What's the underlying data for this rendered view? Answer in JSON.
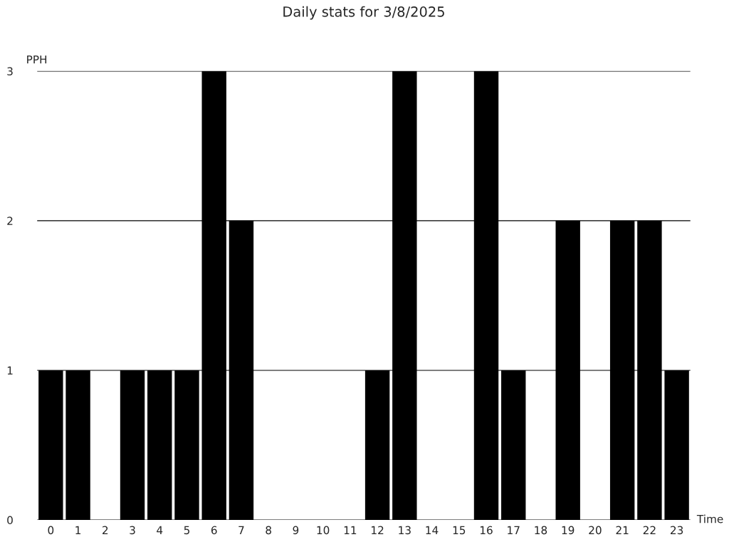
{
  "chart_data": {
    "type": "bar",
    "title": "Daily stats for 3/8/2025",
    "xlabel": "Time",
    "ylabel": "PPH",
    "categories": [
      "0",
      "1",
      "2",
      "3",
      "4",
      "5",
      "6",
      "7",
      "8",
      "9",
      "10",
      "11",
      "12",
      "13",
      "14",
      "15",
      "16",
      "17",
      "18",
      "19",
      "20",
      "21",
      "22",
      "23"
    ],
    "series": [
      {
        "color": "#000000",
        "values": [
          1,
          1,
          0,
          1,
          1,
          1,
          3,
          2,
          0,
          0,
          0,
          0,
          1,
          3,
          0,
          0,
          3,
          1,
          0,
          2,
          0,
          2,
          2,
          1
        ]
      }
    ],
    "ylim": [
      0,
      3
    ],
    "yticks": [
      0,
      1,
      2,
      3
    ],
    "grid": "y",
    "legend": false
  }
}
